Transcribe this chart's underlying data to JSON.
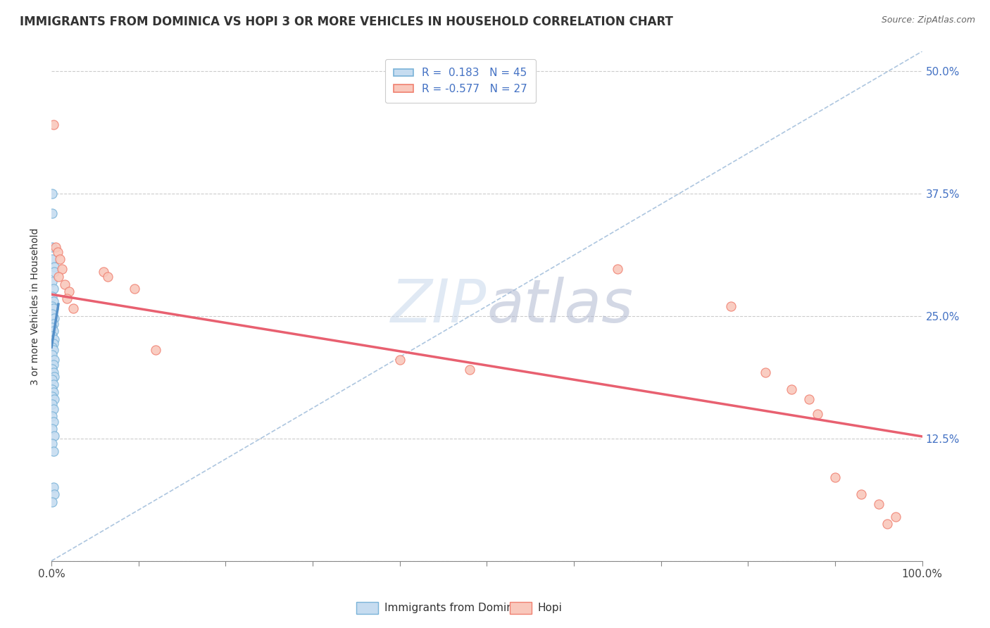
{
  "title": "IMMIGRANTS FROM DOMINICA VS HOPI 3 OR MORE VEHICLES IN HOUSEHOLD CORRELATION CHART",
  "source": "Source: ZipAtlas.com",
  "ylabel": "3 or more Vehicles in Household",
  "watermark": "ZIPatlas",
  "legend_r1": "R =  0.183",
  "legend_n1": "N = 45",
  "legend_r2": "R = -0.577",
  "legend_n2": "N = 27",
  "xlim": [
    0.0,
    1.0
  ],
  "ylim": [
    0.0,
    0.52
  ],
  "xticks": [
    0.0,
    0.1,
    0.2,
    0.3,
    0.4,
    0.5,
    0.6,
    0.7,
    0.8,
    0.9,
    1.0
  ],
  "xticklabels": [
    "0.0%",
    "",
    "",
    "",
    "",
    "",
    "",
    "",
    "",
    "",
    "100.0%"
  ],
  "ytick_positions": [
    0.0,
    0.125,
    0.25,
    0.375,
    0.5
  ],
  "yticklabels_right": [
    "",
    "12.5%",
    "25.0%",
    "37.5%",
    "50.0%"
  ],
  "blue_scatter": [
    [
      0.001,
      0.375
    ],
    [
      0.001,
      0.355
    ],
    [
      0.001,
      0.32
    ],
    [
      0.001,
      0.308
    ],
    [
      0.003,
      0.3
    ],
    [
      0.003,
      0.295
    ],
    [
      0.001,
      0.285
    ],
    [
      0.002,
      0.278
    ],
    [
      0.001,
      0.27
    ],
    [
      0.002,
      0.265
    ],
    [
      0.001,
      0.26
    ],
    [
      0.002,
      0.258
    ],
    [
      0.001,
      0.252
    ],
    [
      0.003,
      0.248
    ],
    [
      0.002,
      0.242
    ],
    [
      0.001,
      0.238
    ],
    [
      0.002,
      0.235
    ],
    [
      0.001,
      0.23
    ],
    [
      0.003,
      0.226
    ],
    [
      0.002,
      0.222
    ],
    [
      0.001,
      0.218
    ],
    [
      0.002,
      0.215
    ],
    [
      0.001,
      0.21
    ],
    [
      0.003,
      0.205
    ],
    [
      0.002,
      0.2
    ],
    [
      0.001,
      0.196
    ],
    [
      0.002,
      0.192
    ],
    [
      0.003,
      0.188
    ],
    [
      0.001,
      0.185
    ],
    [
      0.002,
      0.18
    ],
    [
      0.001,
      0.175
    ],
    [
      0.002,
      0.172
    ],
    [
      0.001,
      0.168
    ],
    [
      0.003,
      0.165
    ],
    [
      0.001,
      0.16
    ],
    [
      0.002,
      0.155
    ],
    [
      0.001,
      0.148
    ],
    [
      0.002,
      0.142
    ],
    [
      0.001,
      0.135
    ],
    [
      0.003,
      0.128
    ],
    [
      0.001,
      0.12
    ],
    [
      0.002,
      0.112
    ],
    [
      0.002,
      0.075
    ],
    [
      0.003,
      0.068
    ],
    [
      0.001,
      0.06
    ]
  ],
  "pink_scatter": [
    [
      0.002,
      0.445
    ],
    [
      0.005,
      0.32
    ],
    [
      0.007,
      0.315
    ],
    [
      0.01,
      0.308
    ],
    [
      0.012,
      0.298
    ],
    [
      0.008,
      0.29
    ],
    [
      0.015,
      0.282
    ],
    [
      0.02,
      0.275
    ],
    [
      0.018,
      0.268
    ],
    [
      0.025,
      0.258
    ],
    [
      0.06,
      0.295
    ],
    [
      0.065,
      0.29
    ],
    [
      0.095,
      0.278
    ],
    [
      0.12,
      0.215
    ],
    [
      0.4,
      0.205
    ],
    [
      0.48,
      0.195
    ],
    [
      0.65,
      0.298
    ],
    [
      0.78,
      0.26
    ],
    [
      0.82,
      0.192
    ],
    [
      0.85,
      0.175
    ],
    [
      0.87,
      0.165
    ],
    [
      0.88,
      0.15
    ],
    [
      0.9,
      0.085
    ],
    [
      0.93,
      0.068
    ],
    [
      0.95,
      0.058
    ],
    [
      0.96,
      0.038
    ],
    [
      0.97,
      0.045
    ]
  ],
  "blue_line_x": [
    0.0,
    0.008
  ],
  "blue_line_y": [
    0.218,
    0.262
  ],
  "pink_line_x": [
    0.0,
    1.0
  ],
  "pink_line_y": [
    0.272,
    0.127
  ],
  "diag_line_x": [
    0.0,
    1.0
  ],
  "diag_line_y": [
    0.0,
    0.52
  ],
  "background_color": "#ffffff",
  "title_color": "#333333",
  "source_color": "#666666",
  "blue_scatter_face": "#c6dcf0",
  "blue_scatter_edge": "#7ab3d8",
  "pink_scatter_face": "#f9c8bc",
  "pink_scatter_edge": "#f08070",
  "blue_line_color": "#5590c8",
  "pink_line_color": "#e86070",
  "diag_line_color": "#99b8d8",
  "right_tick_color": "#4472c4",
  "legend_r_color": "#4472c4"
}
